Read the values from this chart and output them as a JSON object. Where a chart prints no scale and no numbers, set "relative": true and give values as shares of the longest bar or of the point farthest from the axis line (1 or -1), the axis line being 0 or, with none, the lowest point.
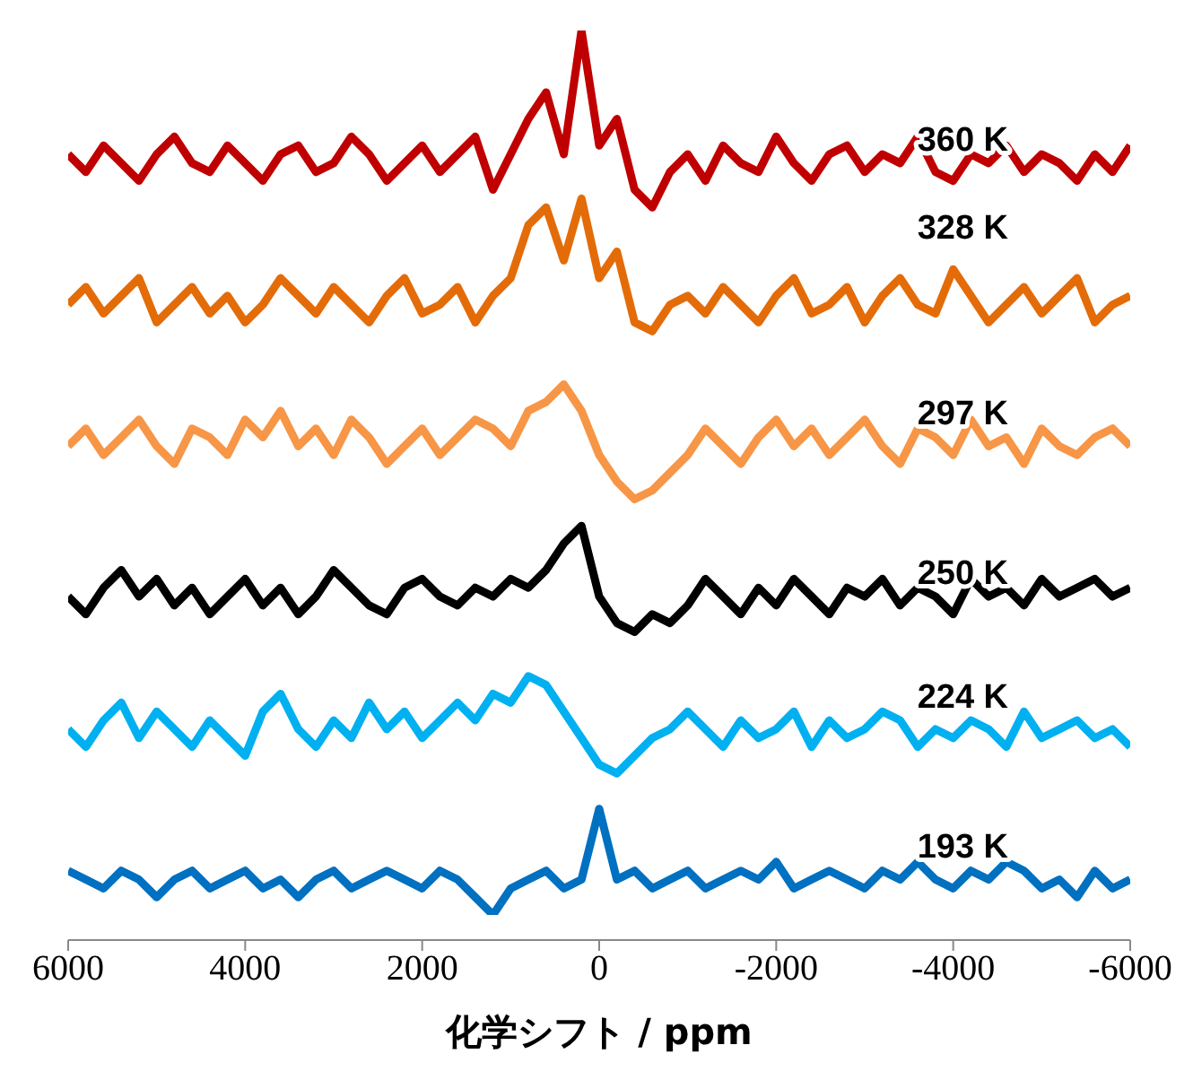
{
  "chart_data": {
    "type": "line",
    "relative": true,
    "xlabel": "化学シフト / ppm",
    "xlim": [
      6000,
      -6000
    ],
    "xticks": [
      6000,
      4000,
      2000,
      0,
      -2000,
      -4000,
      -6000
    ],
    "tick_labels": "x",
    "grid": false,
    "legend": false,
    "marker": "none",
    "line_style": "solid",
    "x": [
      6000,
      5800,
      5600,
      5400,
      5200,
      5000,
      4800,
      4600,
      4400,
      4200,
      4000,
      3800,
      3600,
      3400,
      3200,
      3000,
      2800,
      2600,
      2400,
      2200,
      2000,
      1800,
      1600,
      1400,
      1200,
      1000,
      800,
      600,
      400,
      200,
      0,
      -200,
      -400,
      -600,
      -800,
      -1000,
      -1200,
      -1400,
      -1600,
      -1800,
      -2000,
      -2200,
      -2400,
      -2600,
      -2800,
      -3000,
      -3200,
      -3400,
      -3600,
      -3800,
      -4000,
      -4200,
      -4400,
      -4600,
      -4800,
      -5000,
      -5200,
      -5400,
      -5600,
      -5800,
      -6000
    ],
    "series": [
      {
        "name": "360 K",
        "color": "#c00000",
        "values": [
          0.86,
          0.84,
          0.87,
          0.85,
          0.83,
          0.86,
          0.88,
          0.85,
          0.84,
          0.87,
          0.85,
          0.83,
          0.86,
          0.87,
          0.84,
          0.85,
          0.88,
          0.86,
          0.83,
          0.85,
          0.87,
          0.84,
          0.86,
          0.88,
          0.82,
          0.86,
          0.9,
          0.93,
          0.86,
          1.0,
          0.87,
          0.9,
          0.82,
          0.8,
          0.84,
          0.86,
          0.83,
          0.87,
          0.85,
          0.84,
          0.88,
          0.85,
          0.83,
          0.86,
          0.87,
          0.84,
          0.86,
          0.85,
          0.88,
          0.84,
          0.83,
          0.86,
          0.85,
          0.87,
          0.84,
          0.86,
          0.85,
          0.83,
          0.86,
          0.84,
          0.87
        ]
      },
      {
        "name": "328 K",
        "color": "#e36c09",
        "values": [
          0.69,
          0.71,
          0.68,
          0.7,
          0.72,
          0.67,
          0.69,
          0.71,
          0.68,
          0.7,
          0.67,
          0.69,
          0.72,
          0.7,
          0.68,
          0.71,
          0.69,
          0.67,
          0.7,
          0.72,
          0.68,
          0.69,
          0.71,
          0.67,
          0.7,
          0.72,
          0.78,
          0.8,
          0.74,
          0.81,
          0.72,
          0.75,
          0.67,
          0.66,
          0.69,
          0.7,
          0.68,
          0.71,
          0.69,
          0.67,
          0.7,
          0.72,
          0.68,
          0.69,
          0.71,
          0.67,
          0.7,
          0.72,
          0.69,
          0.68,
          0.73,
          0.7,
          0.67,
          0.69,
          0.71,
          0.68,
          0.7,
          0.72,
          0.67,
          0.69,
          0.7
        ]
      },
      {
        "name": "297 K",
        "color": "#f79646",
        "values": [
          0.53,
          0.55,
          0.52,
          0.54,
          0.56,
          0.53,
          0.51,
          0.55,
          0.54,
          0.52,
          0.56,
          0.54,
          0.57,
          0.53,
          0.55,
          0.52,
          0.56,
          0.54,
          0.51,
          0.53,
          0.55,
          0.52,
          0.54,
          0.56,
          0.55,
          0.53,
          0.57,
          0.58,
          0.6,
          0.57,
          0.52,
          0.49,
          0.47,
          0.48,
          0.5,
          0.52,
          0.55,
          0.53,
          0.51,
          0.54,
          0.56,
          0.53,
          0.55,
          0.52,
          0.54,
          0.56,
          0.53,
          0.51,
          0.55,
          0.54,
          0.52,
          0.56,
          0.53,
          0.54,
          0.51,
          0.55,
          0.53,
          0.52,
          0.54,
          0.55,
          0.53
        ]
      },
      {
        "name": "250 K",
        "color": "#000000",
        "values": [
          0.36,
          0.34,
          0.37,
          0.39,
          0.36,
          0.38,
          0.35,
          0.37,
          0.34,
          0.36,
          0.38,
          0.35,
          0.37,
          0.34,
          0.36,
          0.39,
          0.37,
          0.35,
          0.34,
          0.37,
          0.38,
          0.36,
          0.35,
          0.37,
          0.36,
          0.38,
          0.37,
          0.39,
          0.42,
          0.44,
          0.36,
          0.33,
          0.32,
          0.34,
          0.33,
          0.35,
          0.38,
          0.36,
          0.34,
          0.37,
          0.35,
          0.38,
          0.36,
          0.34,
          0.37,
          0.36,
          0.38,
          0.35,
          0.37,
          0.36,
          0.34,
          0.38,
          0.36,
          0.37,
          0.35,
          0.38,
          0.36,
          0.37,
          0.38,
          0.36,
          0.37
        ]
      },
      {
        "name": "224 K",
        "color": "#00b0f0",
        "values": [
          0.21,
          0.19,
          0.22,
          0.24,
          0.2,
          0.23,
          0.21,
          0.19,
          0.22,
          0.2,
          0.18,
          0.23,
          0.25,
          0.21,
          0.19,
          0.22,
          0.2,
          0.24,
          0.21,
          0.23,
          0.2,
          0.22,
          0.24,
          0.22,
          0.25,
          0.24,
          0.27,
          0.26,
          0.23,
          0.2,
          0.17,
          0.16,
          0.18,
          0.2,
          0.21,
          0.23,
          0.21,
          0.19,
          0.22,
          0.2,
          0.21,
          0.23,
          0.19,
          0.22,
          0.2,
          0.21,
          0.23,
          0.22,
          0.19,
          0.21,
          0.2,
          0.22,
          0.21,
          0.19,
          0.23,
          0.2,
          0.21,
          0.22,
          0.2,
          0.21,
          0.19
        ]
      },
      {
        "name": "193 K",
        "color": "#0070c0",
        "values": [
          0.05,
          0.04,
          0.03,
          0.05,
          0.04,
          0.02,
          0.04,
          0.05,
          0.03,
          0.04,
          0.05,
          0.03,
          0.04,
          0.02,
          0.04,
          0.05,
          0.03,
          0.04,
          0.05,
          0.04,
          0.03,
          0.05,
          0.04,
          0.02,
          0.0,
          0.03,
          0.04,
          0.05,
          0.03,
          0.04,
          0.12,
          0.04,
          0.05,
          0.03,
          0.04,
          0.05,
          0.03,
          0.04,
          0.05,
          0.04,
          0.06,
          0.03,
          0.04,
          0.05,
          0.04,
          0.03,
          0.05,
          0.04,
          0.06,
          0.04,
          0.03,
          0.05,
          0.04,
          0.06,
          0.05,
          0.03,
          0.04,
          0.02,
          0.05,
          0.03,
          0.04
        ]
      }
    ]
  }
}
